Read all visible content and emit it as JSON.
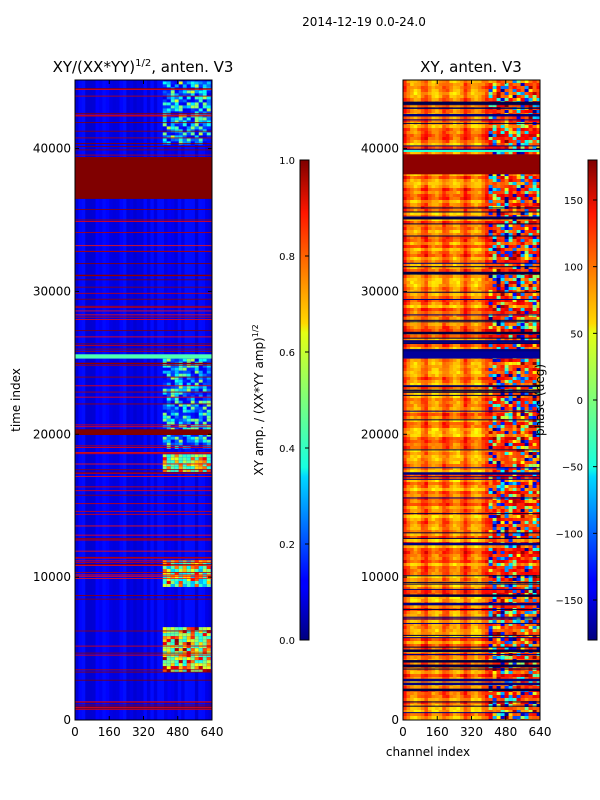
{
  "suptitle": "2014-12-19 0.0-24.0",
  "chart_data": [
    {
      "type": "heatmap",
      "title_main": "XY/(XX*YY)",
      "title_sup": "1/2",
      "title_rest": ", anten. V3",
      "xlabel": "",
      "ylabel": "time index",
      "xlim": [
        0,
        640
      ],
      "ylim": [
        0,
        44800
      ],
      "xticks": [
        0,
        160,
        320,
        480,
        640
      ],
      "yticks": [
        0,
        10000,
        20000,
        30000,
        40000
      ],
      "colormap": "jet",
      "background_value": 0.1,
      "solid_bands": [
        {
          "y0": 36500,
          "y1": 39400,
          "value": 1.0
        },
        {
          "y0": 19950,
          "y1": 20350,
          "value": 1.0
        },
        {
          "y0": 25300,
          "y1": 25600,
          "value": 0.45
        }
      ],
      "noisy_patches": [
        {
          "x0": 410,
          "x1": 620,
          "y0": 40300,
          "y1": 44700,
          "min": 0.1,
          "max": 0.6
        },
        {
          "x0": 410,
          "x1": 620,
          "y0": 19000,
          "y1": 25500,
          "min": 0.1,
          "max": 0.55
        },
        {
          "x0": 410,
          "x1": 620,
          "y0": 17500,
          "y1": 18600,
          "min": 0.4,
          "max": 0.9
        },
        {
          "x0": 410,
          "x1": 620,
          "y0": 9500,
          "y1": 11200,
          "min": 0.3,
          "max": 0.9
        },
        {
          "x0": 410,
          "x1": 620,
          "y0": 3500,
          "y1": 6500,
          "min": 0.4,
          "max": 1.0
        }
      ],
      "colorbar": {
        "label_main": "XY amp. / (XX*YY amp)",
        "label_sup": "1/2",
        "range": [
          0,
          1
        ],
        "ticks": [
          "0.0",
          "0.2",
          "0.4",
          "0.6",
          "0.8",
          "1.0"
        ]
      }
    },
    {
      "type": "heatmap",
      "title": "XY, anten. V3",
      "xlabel": "channel index",
      "ylabel": "",
      "xlim": [
        0,
        640
      ],
      "ylim": [
        0,
        44800
      ],
      "xticks": [
        0,
        160,
        320,
        480,
        640
      ],
      "yticks": [
        0,
        10000,
        20000,
        30000,
        40000
      ],
      "colormap": "jet",
      "solid_bands": [
        {
          "y0": 38200,
          "y1": 39600,
          "value": 175
        },
        {
          "y0": 25300,
          "y1": 25800,
          "value": -170
        }
      ],
      "noise_start_channel": 400,
      "colorbar": {
        "label": "phase (deg)",
        "range": [
          -180,
          180
        ],
        "ticks": [
          "−150",
          "−100",
          "−50",
          "0",
          "50",
          "100",
          "150"
        ]
      }
    }
  ]
}
